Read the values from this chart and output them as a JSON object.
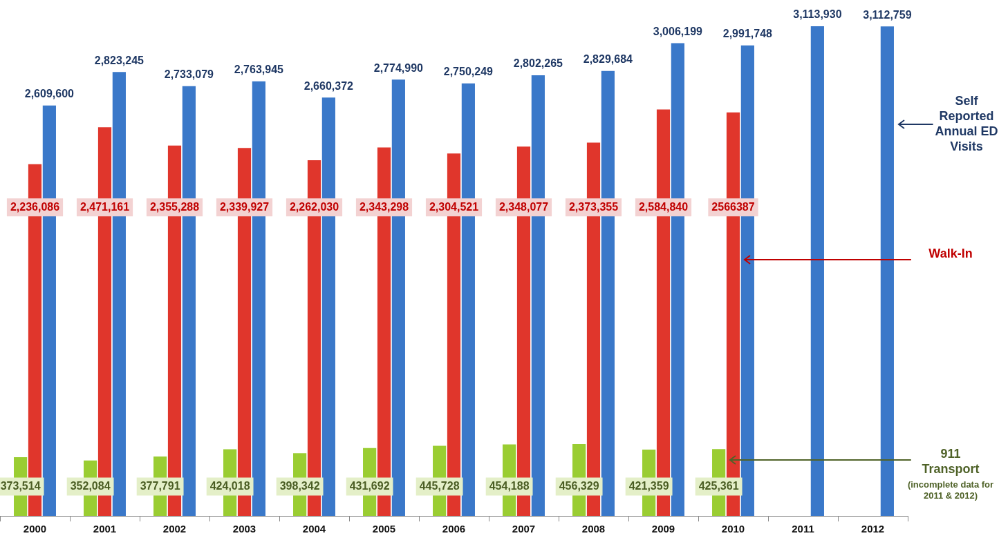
{
  "chart_data": {
    "type": "bar",
    "categories": [
      "2000",
      "2001",
      "2002",
      "2003",
      "2004",
      "2005",
      "2006",
      "2007",
      "2008",
      "2009",
      "2010",
      "2011",
      "2012"
    ],
    "series": [
      {
        "name": "Self Reported Annual ED Visits",
        "color": "#3a78c9",
        "values": [
          2609600,
          2823245,
          2733079,
          2763945,
          2660372,
          2774990,
          2750249,
          2802265,
          2829684,
          3006199,
          2991748,
          3113930,
          3112759
        ],
        "value_labels": [
          "2,609,600",
          "2,823,245",
          "2,733,079",
          "2,763,945",
          "2,660,372",
          "2,774,990",
          "2,750,249",
          "2,802,265",
          "2,829,684",
          "3,006,199",
          "2,991,748",
          "3,113,930",
          "3,112,759"
        ]
      },
      {
        "name": "Walk-In",
        "color": "#e0362c",
        "values": [
          2236086,
          2471161,
          2355288,
          2339927,
          2262030,
          2343298,
          2304521,
          2348077,
          2373355,
          2584840,
          2566387,
          null,
          null
        ],
        "value_labels": [
          "2,236,086",
          "2,471,161",
          "2,355,288",
          "2,339,927",
          "2,262,030",
          "2,343,298",
          "2,304,521",
          "2,348,077",
          "2,373,355",
          "2,584,840",
          "2566387",
          null,
          null
        ]
      },
      {
        "name": "911 Transport",
        "color": "#9acd32",
        "values": [
          373514,
          352084,
          377791,
          424018,
          398342,
          431692,
          445728,
          454188,
          456329,
          421359,
          425361,
          null,
          null
        ],
        "value_labels": [
          "373,514",
          "352,084",
          "377,791",
          "424,018",
          "398,342",
          "431,692",
          "445,728",
          "454,188",
          "456,329",
          "421,359",
          "425,361",
          null,
          null
        ]
      }
    ],
    "annotations": [
      "(incomplete data for 2011 & 2012)"
    ]
  }
}
